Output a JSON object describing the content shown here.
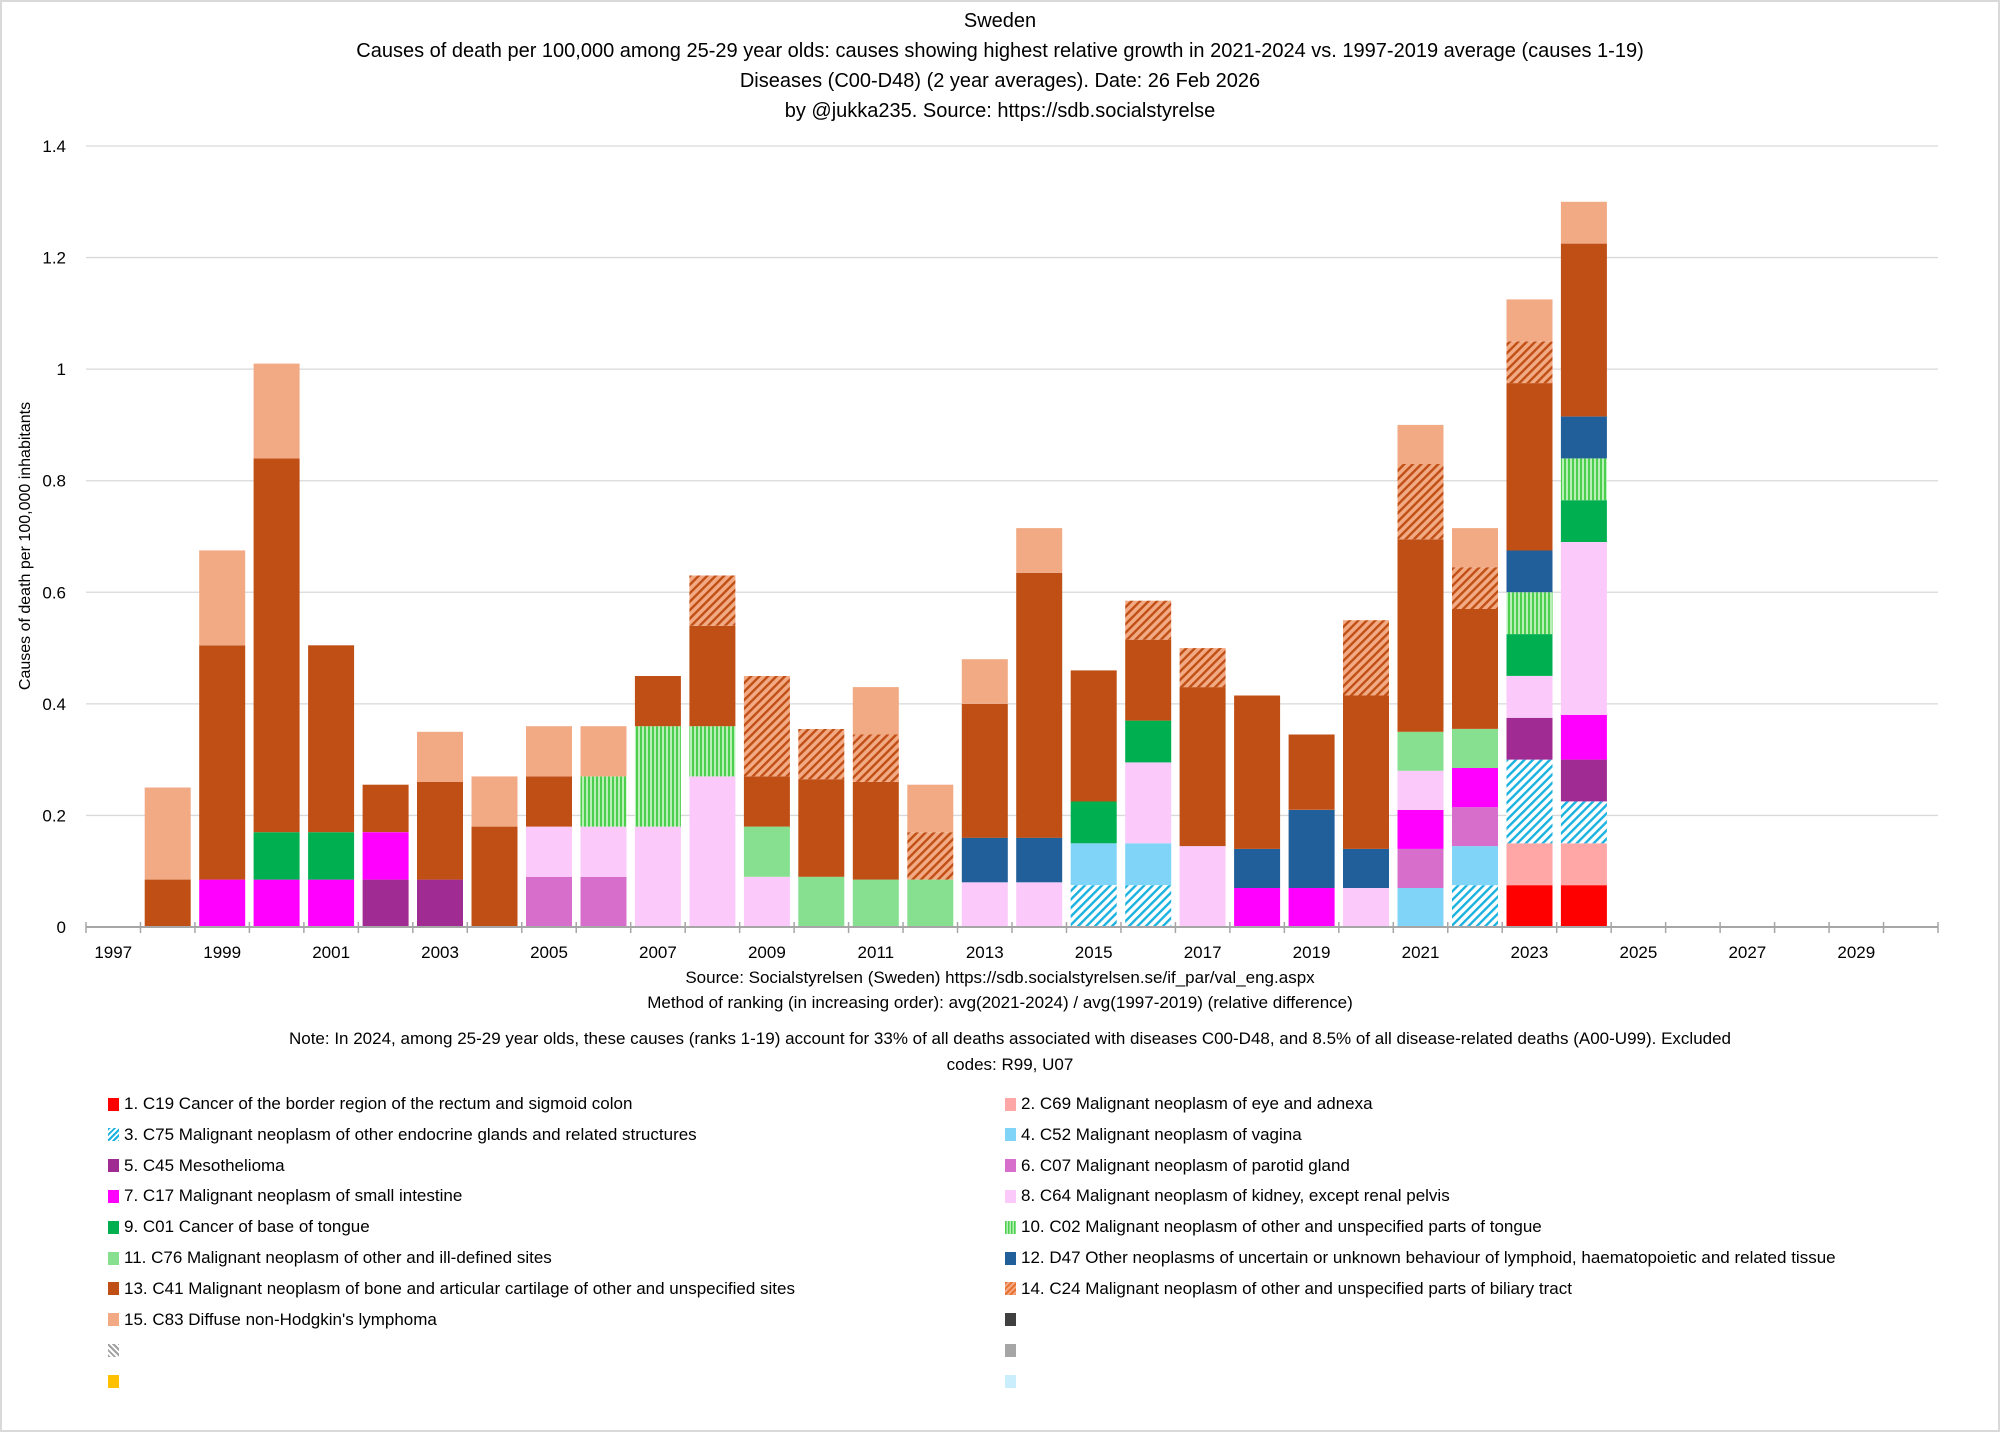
{
  "chart_data": {
    "type": "bar",
    "stacked": true,
    "title_lines": [
      "Sweden",
      "Causes of death per 100,000 among  25-29 year olds: causes showing highest relative growth in 2021-2024 vs. 1997-2019 average   (causes 1-19)",
      "Diseases (C00-D48)  (2 year averages).  Date: 26 Feb 2026",
      "by @jukka235. Source: https://sdb.socialstyrelse"
    ],
    "ylabel": "Causes of death per 100,000 inhabitants",
    "xlabel": "",
    "ylim": [
      0,
      1.4
    ],
    "yticks": [
      "0",
      "0.2",
      "0.4",
      "0.6",
      "0.8",
      "1",
      "1.2",
      "1.4"
    ],
    "ytick_values": [
      0,
      0.2,
      0.4,
      0.6,
      0.8,
      1.0,
      1.2,
      1.4
    ],
    "grid": true,
    "categories": [
      1997,
      1998,
      1999,
      2000,
      2001,
      2002,
      2003,
      2004,
      2005,
      2006,
      2007,
      2008,
      2009,
      2010,
      2011,
      2012,
      2013,
      2014,
      2015,
      2016,
      2017,
      2018,
      2019,
      2020,
      2021,
      2022,
      2023,
      2024,
      2025,
      2026,
      2027,
      2028,
      2029,
      2030
    ],
    "xtick_labels": [
      "1997",
      "1999",
      "2001",
      "2003",
      "2005",
      "2007",
      "2009",
      "2011",
      "2013",
      "2015",
      "2017",
      "2019",
      "2021",
      "2023",
      "2025",
      "2027",
      "2029"
    ],
    "legend_position": "bottom",
    "series": [
      {
        "name": "1. C19 Cancer of the border region of the rectum and sigmoid colon",
        "color": "#ff0000",
        "pattern": "solid",
        "values": {
          "2023": 0.075,
          "2024": 0.075
        }
      },
      {
        "name": "2. C69 Malignant neoplasm of eye and adnexa",
        "color": "#ffa6a6",
        "pattern": "solid",
        "values": {
          "2023": 0.075,
          "2024": 0.075
        }
      },
      {
        "name": "3. C75 Malignant neoplasm of other endocrine glands and related structures",
        "color": "#1ab2e0",
        "pattern": "diagonal",
        "values": {
          "2015": 0.075,
          "2016": 0.075,
          "2022": 0.075,
          "2023": 0.15,
          "2024": 0.075
        }
      },
      {
        "name": "4. C52 Malignant neoplasm of vagina",
        "color": "#80d4f8",
        "pattern": "solid",
        "values": {
          "2015": 0.075,
          "2016": 0.075,
          "2021": 0.07,
          "2022": 0.07
        }
      },
      {
        "name": "5. C45 Mesothelioma",
        "color": "#a02b93",
        "pattern": "solid",
        "values": {
          "2002": 0.085,
          "2003": 0.085,
          "2023": 0.075,
          "2024": 0.075
        }
      },
      {
        "name": "6. C07 Malignant neoplasm of parotid gland",
        "color": "#d86ecc",
        "pattern": "solid",
        "values": {
          "2005": 0.09,
          "2006": 0.09,
          "2021": 0.07,
          "2022": 0.07
        }
      },
      {
        "name": "7. C17 Malignant neoplasm of small intestine",
        "color": "#ff00ff",
        "pattern": "solid",
        "values": {
          "1999": 0.085,
          "2000": 0.085,
          "2001": 0.085,
          "2002": 0.085,
          "2018": 0.07,
          "2019": 0.07,
          "2021": 0.07,
          "2022": 0.07,
          "2024": 0.08
        }
      },
      {
        "name": "8. C64 Malignant neoplasm of kidney, except renal pelvis",
        "color": "#fbcafb",
        "pattern": "solid",
        "values": {
          "2005": 0.09,
          "2006": 0.09,
          "2007": 0.18,
          "2008": 0.27,
          "2009": 0.09,
          "2013": 0.08,
          "2014": 0.08,
          "2016": 0.145,
          "2017": 0.145,
          "2020": 0.07,
          "2021": 0.07,
          "2023": 0.075,
          "2024": 0.31
        }
      },
      {
        "name": "9. C01 Cancer of base of tongue",
        "color": "#00b050",
        "pattern": "solid",
        "values": {
          "2000": 0.085,
          "2001": 0.085,
          "2015": 0.075,
          "2016": 0.075,
          "2023": 0.075,
          "2024": 0.075
        }
      },
      {
        "name": "10. C02 Malignant neoplasm of other and unspecified parts of tongue",
        "color": "#4ccf4c",
        "pattern": "vertical",
        "values": {
          "2006": 0.09,
          "2007": 0.18,
          "2008": 0.09,
          "2023": 0.075,
          "2024": 0.075
        }
      },
      {
        "name": "11. C76 Malignant neoplasm of other and ill-defined sites",
        "color": "#86e08f",
        "pattern": "solid",
        "values": {
          "2009": 0.09,
          "2010": 0.09,
          "2011": 0.085,
          "2012": 0.085,
          "2021": 0.07,
          "2022": 0.07
        }
      },
      {
        "name": "12. D47 Other neoplasms of uncertain or unknown behaviour of lymphoid, haematopoietic and related tissue",
        "color": "#215f9a",
        "pattern": "solid",
        "values": {
          "2013": 0.08,
          "2014": 0.08,
          "2018": 0.07,
          "2019": 0.14,
          "2020": 0.07,
          "2023": 0.075,
          "2024": 0.075
        }
      },
      {
        "name": "13. C41 Malignant neoplasm of bone and articular cartilage of other and unspecified sites",
        "color": "#c04f15",
        "pattern": "solid",
        "values": {
          "1998": 0.085,
          "1999": 0.42,
          "2000": 0.67,
          "2001": 0.335,
          "2002": 0.085,
          "2003": 0.175,
          "2004": 0.18,
          "2005": 0.09,
          "2007": 0.09,
          "2008": 0.18,
          "2009": 0.09,
          "2010": 0.175,
          "2011": 0.175,
          "2013": 0.24,
          "2014": 0.475,
          "2015": 0.235,
          "2016": 0.145,
          "2017": 0.285,
          "2018": 0.275,
          "2019": 0.135,
          "2020": 0.275,
          "2021": 0.345,
          "2022": 0.215,
          "2023": 0.3,
          "2024": 0.31
        }
      },
      {
        "name": "14. C24 Malignant neoplasm of other and unspecified parts of biliary tract",
        "color": "#e97132",
        "pattern": "diagonal",
        "values": {
          "2008": 0.09,
          "2009": 0.18,
          "2010": 0.09,
          "2011": 0.085,
          "2012": 0.085,
          "2016": 0.07,
          "2017": 0.07,
          "2020": 0.135,
          "2021": 0.135,
          "2022": 0.075,
          "2023": 0.075
        }
      },
      {
        "name": "15. C83 Diffuse non-Hodgkin's lymphoma",
        "color": "#f2aa84",
        "pattern": "solid",
        "values": {
          "1998": 0.165,
          "1999": 0.17,
          "2000": 0.17,
          "2003": 0.09,
          "2004": 0.09,
          "2005": 0.09,
          "2006": 0.09,
          "2011": 0.085,
          "2012": 0.085,
          "2013": 0.08,
          "2014": 0.08,
          "2021": 0.07,
          "2022": 0.07,
          "2023": 0.075,
          "2024": 0.075
        }
      },
      {
        "name": "",
        "color": "#404040",
        "pattern": "solid",
        "values": {}
      },
      {
        "name": "",
        "color": "#a0a0a0",
        "pattern": "diagonal-back",
        "values": {}
      },
      {
        "name": "",
        "color": "#a6a6a6",
        "pattern": "solid",
        "values": {}
      },
      {
        "name": "",
        "color": "#ffc000",
        "pattern": "solid",
        "values": {}
      },
      {
        "name": "",
        "color": "#caeefb",
        "pattern": "solid",
        "values": {}
      }
    ]
  },
  "footer": {
    "source": "Source: Socialstyrelsen (Sweden)  https://sdb.socialstyrelsen.se/if_par/val_eng.aspx",
    "method": "Method of ranking (in increasing order): avg(2021-2024) / avg(1997-2019)   (relative difference)",
    "note_line1": "Note: In 2024, among  25-29 year olds, these causes (ranks 1-19) account for 33% of all deaths associated with diseases C00-D48, and 8.5% of all disease-related deaths (A00-U99).     Excluded",
    "note_line2": "codes: R99, U07"
  }
}
